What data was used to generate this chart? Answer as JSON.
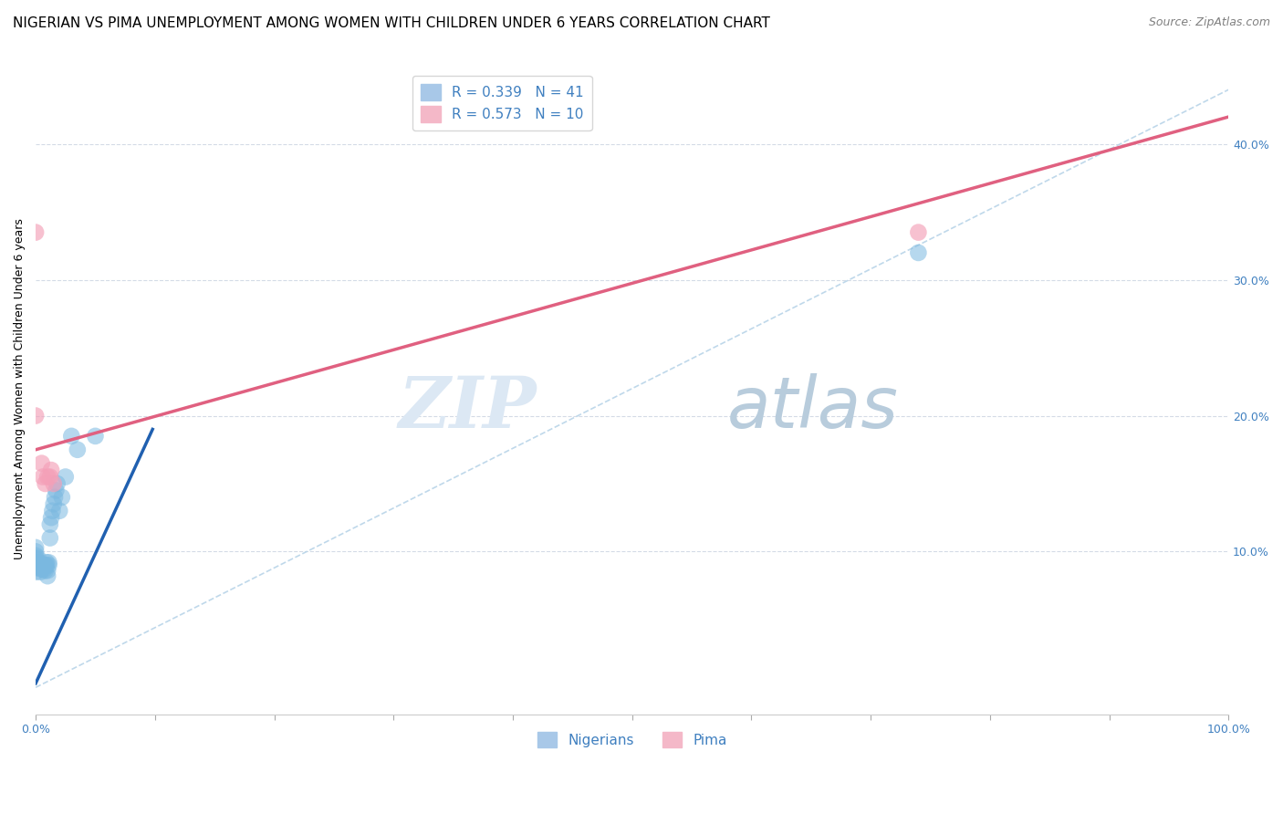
{
  "title": "NIGERIAN VS PIMA UNEMPLOYMENT AMONG WOMEN WITH CHILDREN UNDER 6 YEARS CORRELATION CHART",
  "source": "Source: ZipAtlas.com",
  "ylabel": "Unemployment Among Women with Children Under 6 years",
  "xlim": [
    0,
    1.0
  ],
  "ylim": [
    -0.02,
    0.46
  ],
  "xticks": [
    0.0,
    0.1,
    0.2,
    0.3,
    0.4,
    0.5,
    0.6,
    0.7,
    0.8,
    0.9,
    1.0
  ],
  "xticklabels": [
    "0.0%",
    "",
    "",
    "",
    "",
    "",
    "",
    "",
    "",
    "",
    "100.0%"
  ],
  "yticks_left": [],
  "yticks_right": [
    0.1,
    0.2,
    0.3,
    0.4
  ],
  "yticklabels_right": [
    "10.0%",
    "20.0%",
    "30.0%",
    "40.0%"
  ],
  "legend_entries": [
    {
      "label": "R = 0.339   N = 41",
      "color": "#a8c8e8"
    },
    {
      "label": "R = 0.573   N = 10",
      "color": "#f4b8c8"
    }
  ],
  "bottom_legend": [
    "Nigerians",
    "Pima"
  ],
  "bottom_legend_colors": [
    "#a8c8e8",
    "#f4b8c8"
  ],
  "nigerian_scatter_x": [
    0.0,
    0.0,
    0.0,
    0.0,
    0.0,
    0.0,
    0.0,
    0.0,
    0.002,
    0.002,
    0.003,
    0.003,
    0.004,
    0.005,
    0.005,
    0.006,
    0.007,
    0.007,
    0.008,
    0.008,
    0.009,
    0.009,
    0.01,
    0.01,
    0.011,
    0.011,
    0.012,
    0.012,
    0.013,
    0.014,
    0.015,
    0.016,
    0.017,
    0.018,
    0.02,
    0.022,
    0.025,
    0.03,
    0.035,
    0.05,
    0.74
  ],
  "nigerian_scatter_y": [
    0.085,
    0.088,
    0.09,
    0.092,
    0.095,
    0.097,
    0.1,
    0.103,
    0.09,
    0.095,
    0.088,
    0.092,
    0.085,
    0.087,
    0.09,
    0.088,
    0.087,
    0.09,
    0.086,
    0.09,
    0.09,
    0.092,
    0.082,
    0.086,
    0.09,
    0.092,
    0.11,
    0.12,
    0.125,
    0.13,
    0.135,
    0.14,
    0.145,
    0.15,
    0.13,
    0.14,
    0.155,
    0.185,
    0.175,
    0.185,
    0.32
  ],
  "pima_scatter_x": [
    0.0,
    0.0,
    0.005,
    0.006,
    0.008,
    0.01,
    0.012,
    0.013,
    0.015,
    0.74
  ],
  "pima_scatter_y": [
    0.335,
    0.2,
    0.165,
    0.155,
    0.15,
    0.155,
    0.155,
    0.16,
    0.15,
    0.335
  ],
  "nigerian_line_x": [
    0.0,
    0.098
  ],
  "nigerian_line_y": [
    0.003,
    0.19
  ],
  "pima_line_x": [
    0.0,
    1.0
  ],
  "pima_line_y": [
    0.175,
    0.42
  ],
  "diagonal_line_x": [
    0.0,
    1.0
  ],
  "diagonal_line_y": [
    0.0,
    0.44
  ],
  "nigerian_color": "#7ab8e0",
  "pima_color": "#f4a0b8",
  "nigerian_line_color": "#2060b0",
  "pima_line_color": "#e06080",
  "diagonal_line_color": "#b8d4e8",
  "tick_color": "#4080c0",
  "bg_color": "#ffffff",
  "grid_color": "#d0d8e4",
  "watermark_zip": "ZIP",
  "watermark_atlas": "atlas",
  "watermark_color_zip": "#dce8f4",
  "watermark_color_atlas": "#b8ccdc",
  "title_fontsize": 11,
  "source_fontsize": 9,
  "axis_label_fontsize": 9,
  "tick_fontsize": 9,
  "legend_fontsize": 11
}
